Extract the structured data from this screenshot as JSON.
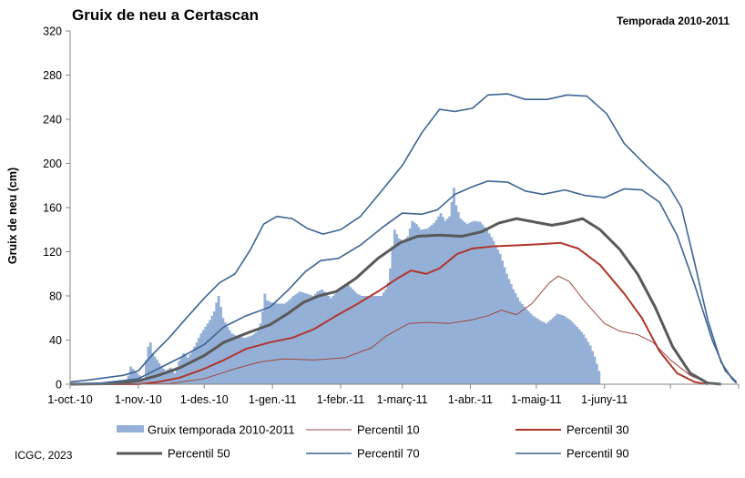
{
  "chart_data": {
    "type": "bar",
    "title": "Gruix de neu a Certascan",
    "subtitle": "Temporada 2010-2011",
    "ylabel": "Gruix de neu (cm)",
    "xlabel": "",
    "ylim": [
      0,
      320
    ],
    "yticks": [
      0,
      40,
      80,
      120,
      160,
      200,
      240,
      280,
      320
    ],
    "xlim": [
      "2010-10-01",
      "2011-07-31"
    ],
    "xtick_labels": [
      "1-oct.-10",
      "1-nov.-10",
      "1-des.-10",
      "1-gen.-11",
      "1-febr.-11",
      "1-març-11",
      "1-abr.-11",
      "1-maig-11",
      "1-juny-11"
    ],
    "xtick_dates": [
      "2010-10-01",
      "2010-11-01",
      "2010-12-01",
      "2011-01-01",
      "2011-02-01",
      "2011-03-01",
      "2011-04-01",
      "2011-05-01",
      "2011-06-01"
    ],
    "grid": false,
    "legend_position": "bottom",
    "credit": "ICGC, 2023",
    "bars": {
      "name": "Gruix temporada 2010-2011",
      "color": "#94b0d7",
      "points": [
        [
          "2010-10-01",
          0
        ],
        [
          "2010-10-26",
          0
        ],
        [
          "2010-10-27",
          8
        ],
        [
          "2010-10-28",
          16
        ],
        [
          "2010-10-30",
          12
        ],
        [
          "2010-11-01",
          8
        ],
        [
          "2010-11-03",
          3
        ],
        [
          "2010-11-04",
          22
        ],
        [
          "2010-11-05",
          34
        ],
        [
          "2010-11-06",
          38
        ],
        [
          "2010-11-07",
          28
        ],
        [
          "2010-11-09",
          22
        ],
        [
          "2010-11-11",
          16
        ],
        [
          "2010-11-13",
          12
        ],
        [
          "2010-11-15",
          15
        ],
        [
          "2010-11-17",
          10
        ],
        [
          "2010-11-19",
          21
        ],
        [
          "2010-11-21",
          28
        ],
        [
          "2010-11-23",
          24
        ],
        [
          "2010-11-25",
          30
        ],
        [
          "2010-11-27",
          38
        ],
        [
          "2010-11-29",
          46
        ],
        [
          "2010-12-01",
          52
        ],
        [
          "2010-12-03",
          58
        ],
        [
          "2010-12-05",
          66
        ],
        [
          "2010-12-06",
          74
        ],
        [
          "2010-12-07",
          80
        ],
        [
          "2010-12-08",
          70
        ],
        [
          "2010-12-09",
          60
        ],
        [
          "2010-12-11",
          52
        ],
        [
          "2010-12-13",
          46
        ],
        [
          "2010-12-16",
          43
        ],
        [
          "2010-12-19",
          42
        ],
        [
          "2010-12-22",
          44
        ],
        [
          "2010-12-24",
          47
        ],
        [
          "2010-12-26",
          55
        ],
        [
          "2010-12-27",
          66
        ],
        [
          "2010-12-28",
          82
        ],
        [
          "2010-12-29",
          76
        ],
        [
          "2010-12-31",
          74
        ],
        [
          "2011-01-03",
          73
        ],
        [
          "2011-01-06",
          73
        ],
        [
          "2011-01-08",
          76
        ],
        [
          "2011-01-10",
          80
        ],
        [
          "2011-01-13",
          84
        ],
        [
          "2011-01-16",
          82
        ],
        [
          "2011-01-19",
          80
        ],
        [
          "2011-01-21",
          84
        ],
        [
          "2011-01-23",
          86
        ],
        [
          "2011-01-25",
          82
        ],
        [
          "2011-01-27",
          78
        ],
        [
          "2011-01-29",
          82
        ],
        [
          "2011-01-31",
          86
        ],
        [
          "2011-02-02",
          88
        ],
        [
          "2011-02-04",
          90
        ],
        [
          "2011-02-06",
          86
        ],
        [
          "2011-02-08",
          82
        ],
        [
          "2011-02-10",
          80
        ],
        [
          "2011-02-13",
          80
        ],
        [
          "2011-02-16",
          80
        ],
        [
          "2011-02-19",
          80
        ],
        [
          "2011-02-21",
          86
        ],
        [
          "2011-02-22",
          92
        ],
        [
          "2011-02-23",
          105
        ],
        [
          "2011-02-24",
          125
        ],
        [
          "2011-02-25",
          140
        ],
        [
          "2011-02-27",
          132
        ],
        [
          "2011-03-01",
          130
        ],
        [
          "2011-03-03",
          134
        ],
        [
          "2011-03-05",
          148
        ],
        [
          "2011-03-07",
          145
        ],
        [
          "2011-03-09",
          140
        ],
        [
          "2011-03-12",
          141
        ],
        [
          "2011-03-15",
          146
        ],
        [
          "2011-03-18",
          155
        ],
        [
          "2011-03-20",
          148
        ],
        [
          "2011-03-22",
          152
        ],
        [
          "2011-03-24",
          178
        ],
        [
          "2011-03-25",
          162
        ],
        [
          "2011-03-27",
          150
        ],
        [
          "2011-03-30",
          145
        ],
        [
          "2011-04-02",
          148
        ],
        [
          "2011-04-05",
          147
        ],
        [
          "2011-04-08",
          140
        ],
        [
          "2011-04-11",
          130
        ],
        [
          "2011-04-14",
          118
        ],
        [
          "2011-04-17",
          100
        ],
        [
          "2011-04-20",
          86
        ],
        [
          "2011-04-23",
          75
        ],
        [
          "2011-04-26",
          68
        ],
        [
          "2011-04-29",
          62
        ],
        [
          "2011-05-02",
          58
        ],
        [
          "2011-05-05",
          55
        ],
        [
          "2011-05-08",
          60
        ],
        [
          "2011-05-10",
          64
        ],
        [
          "2011-05-13",
          62
        ],
        [
          "2011-05-16",
          58
        ],
        [
          "2011-05-19",
          52
        ],
        [
          "2011-05-22",
          45
        ],
        [
          "2011-05-25",
          35
        ],
        [
          "2011-05-27",
          25
        ],
        [
          "2011-05-29",
          12
        ],
        [
          "2011-05-30",
          0
        ]
      ]
    },
    "series": [
      {
        "name": "Percentil 10",
        "color": "#a0443c",
        "width": 1,
        "points": [
          [
            "2010-10-01",
            0
          ],
          [
            "2010-11-01",
            0
          ],
          [
            "2010-11-15",
            0.5
          ],
          [
            "2010-12-01",
            5
          ],
          [
            "2010-12-15",
            14
          ],
          [
            "2010-12-26",
            20
          ],
          [
            "2011-01-06",
            23
          ],
          [
            "2011-01-20",
            22
          ],
          [
            "2011-02-03",
            24
          ],
          [
            "2011-02-15",
            33
          ],
          [
            "2011-02-22",
            44
          ],
          [
            "2011-03-04",
            55
          ],
          [
            "2011-03-12",
            56
          ],
          [
            "2011-03-22",
            55
          ],
          [
            "2011-04-01",
            58
          ],
          [
            "2011-04-09",
            62
          ],
          [
            "2011-04-15",
            67
          ],
          [
            "2011-04-22",
            63
          ],
          [
            "2011-04-29",
            73
          ],
          [
            "2011-05-07",
            92
          ],
          [
            "2011-05-11",
            98
          ],
          [
            "2011-05-16",
            93
          ],
          [
            "2011-05-23",
            75
          ],
          [
            "2011-06-01",
            55
          ],
          [
            "2011-06-08",
            48
          ],
          [
            "2011-06-16",
            45
          ],
          [
            "2011-06-23",
            38
          ],
          [
            "2011-07-01",
            22
          ],
          [
            "2011-07-10",
            8
          ],
          [
            "2011-07-18",
            1
          ],
          [
            "2011-07-25",
            0
          ]
        ]
      },
      {
        "name": "Percentil 30",
        "color": "#b0352a",
        "width": 2,
        "points": [
          [
            "2010-10-01",
            0
          ],
          [
            "2010-11-01",
            0
          ],
          [
            "2010-11-10",
            2
          ],
          [
            "2010-11-20",
            6
          ],
          [
            "2010-12-01",
            14
          ],
          [
            "2010-12-10",
            22
          ],
          [
            "2010-12-20",
            32
          ],
          [
            "2010-12-31",
            38
          ],
          [
            "2011-01-10",
            42
          ],
          [
            "2011-01-20",
            50
          ],
          [
            "2011-01-30",
            62
          ],
          [
            "2011-02-08",
            72
          ],
          [
            "2011-02-18",
            84
          ],
          [
            "2011-02-27",
            96
          ],
          [
            "2011-03-05",
            103
          ],
          [
            "2011-03-12",
            100
          ],
          [
            "2011-03-18",
            105
          ],
          [
            "2011-03-26",
            118
          ],
          [
            "2011-04-02",
            123
          ],
          [
            "2011-04-12",
            125
          ],
          [
            "2011-04-24",
            126
          ],
          [
            "2011-05-04",
            127
          ],
          [
            "2011-05-12",
            128
          ],
          [
            "2011-05-20",
            123
          ],
          [
            "2011-05-30",
            108
          ],
          [
            "2011-06-10",
            82
          ],
          [
            "2011-06-18",
            60
          ],
          [
            "2011-06-26",
            30
          ],
          [
            "2011-07-04",
            10
          ],
          [
            "2011-07-12",
            2
          ],
          [
            "2011-07-18",
            0
          ]
        ]
      },
      {
        "name": "Percentil 50",
        "color": "#595959",
        "width": 3,
        "points": [
          [
            "2010-10-01",
            0
          ],
          [
            "2010-10-20",
            0.5
          ],
          [
            "2010-11-01",
            3
          ],
          [
            "2010-11-10",
            8
          ],
          [
            "2010-11-20",
            15
          ],
          [
            "2010-12-01",
            26
          ],
          [
            "2010-12-10",
            38
          ],
          [
            "2010-12-20",
            46
          ],
          [
            "2010-12-31",
            54
          ],
          [
            "2011-01-08",
            64
          ],
          [
            "2011-01-15",
            74
          ],
          [
            "2011-01-22",
            80
          ],
          [
            "2011-01-30",
            84
          ],
          [
            "2011-02-08",
            96
          ],
          [
            "2011-02-18",
            114
          ],
          [
            "2011-02-28",
            128
          ],
          [
            "2011-03-08",
            134
          ],
          [
            "2011-03-18",
            135
          ],
          [
            "2011-03-28",
            134
          ],
          [
            "2011-04-06",
            138
          ],
          [
            "2011-04-14",
            146
          ],
          [
            "2011-04-22",
            150
          ],
          [
            "2011-04-30",
            147
          ],
          [
            "2011-05-08",
            144
          ],
          [
            "2011-05-14",
            146
          ],
          [
            "2011-05-22",
            150
          ],
          [
            "2011-05-30",
            140
          ],
          [
            "2011-06-08",
            122
          ],
          [
            "2011-06-16",
            100
          ],
          [
            "2011-06-24",
            70
          ],
          [
            "2011-07-02",
            34
          ],
          [
            "2011-07-10",
            10
          ],
          [
            "2011-07-18",
            1
          ],
          [
            "2011-07-24",
            0
          ]
        ]
      },
      {
        "name": "Percentil 70",
        "color": "#3c6494",
        "width": 1.6,
        "points": [
          [
            "2010-10-01",
            0
          ],
          [
            "2010-10-15",
            1
          ],
          [
            "2010-11-01",
            5
          ],
          [
            "2010-11-10",
            14
          ],
          [
            "2010-11-20",
            24
          ],
          [
            "2010-12-01",
            36
          ],
          [
            "2010-12-10",
            52
          ],
          [
            "2010-12-20",
            62
          ],
          [
            "2010-12-31",
            70
          ],
          [
            "2011-01-08",
            85
          ],
          [
            "2011-01-16",
            102
          ],
          [
            "2011-01-23",
            112
          ],
          [
            "2011-01-31",
            114
          ],
          [
            "2011-02-10",
            126
          ],
          [
            "2011-02-20",
            142
          ],
          [
            "2011-03-01",
            155
          ],
          [
            "2011-03-10",
            154
          ],
          [
            "2011-03-17",
            158
          ],
          [
            "2011-03-25",
            172
          ],
          [
            "2011-04-02",
            179
          ],
          [
            "2011-04-09",
            184
          ],
          [
            "2011-04-18",
            183
          ],
          [
            "2011-04-26",
            175
          ],
          [
            "2011-05-04",
            172
          ],
          [
            "2011-05-14",
            176
          ],
          [
            "2011-05-23",
            171
          ],
          [
            "2011-06-01",
            169
          ],
          [
            "2011-06-10",
            177
          ],
          [
            "2011-06-18",
            176
          ],
          [
            "2011-06-26",
            165
          ],
          [
            "2011-07-04",
            135
          ],
          [
            "2011-07-12",
            90
          ],
          [
            "2011-07-20",
            40
          ],
          [
            "2011-07-26",
            12
          ],
          [
            "2011-07-31",
            2
          ]
        ]
      },
      {
        "name": "Percentil 90",
        "color": "#3c6494",
        "width": 1.6,
        "points": [
          [
            "2010-10-01",
            2
          ],
          [
            "2010-10-10",
            4
          ],
          [
            "2010-10-25",
            8
          ],
          [
            "2010-11-01",
            12
          ],
          [
            "2010-11-08",
            28
          ],
          [
            "2010-11-15",
            42
          ],
          [
            "2010-11-22",
            58
          ],
          [
            "2010-12-01",
            78
          ],
          [
            "2010-12-08",
            92
          ],
          [
            "2010-12-15",
            100
          ],
          [
            "2010-12-22",
            122
          ],
          [
            "2010-12-28",
            145
          ],
          [
            "2011-01-03",
            152
          ],
          [
            "2011-01-10",
            150
          ],
          [
            "2011-01-17",
            141
          ],
          [
            "2011-01-24",
            136
          ],
          [
            "2011-02-01",
            140
          ],
          [
            "2011-02-10",
            152
          ],
          [
            "2011-02-20",
            176
          ],
          [
            "2011-03-01",
            198
          ],
          [
            "2011-03-10",
            228
          ],
          [
            "2011-03-18",
            249
          ],
          [
            "2011-03-25",
            247
          ],
          [
            "2011-04-02",
            250
          ],
          [
            "2011-04-09",
            262
          ],
          [
            "2011-04-18",
            263
          ],
          [
            "2011-04-26",
            258
          ],
          [
            "2011-05-06",
            258
          ],
          [
            "2011-05-15",
            262
          ],
          [
            "2011-05-24",
            261
          ],
          [
            "2011-06-02",
            245
          ],
          [
            "2011-06-10",
            218
          ],
          [
            "2011-06-20",
            198
          ],
          [
            "2011-06-30",
            180
          ],
          [
            "2011-07-06",
            160
          ],
          [
            "2011-07-12",
            110
          ],
          [
            "2011-07-18",
            58
          ],
          [
            "2011-07-24",
            20
          ],
          [
            "2011-07-29",
            5
          ],
          [
            "2011-07-31",
            1
          ]
        ]
      }
    ]
  }
}
